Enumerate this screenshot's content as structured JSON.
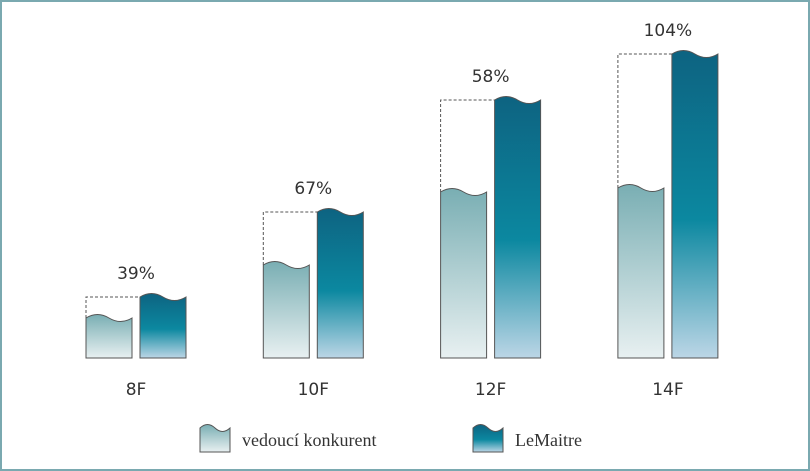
{
  "chart_data": {
    "type": "bar",
    "categories": [
      "8F",
      "10F",
      "12F",
      "14F"
    ],
    "series": [
      {
        "name": "vedoucí konkurent",
        "color": "#7fb0b5",
        "values": [
          40,
          93,
          166,
          170
        ]
      },
      {
        "name": "LeMaitre",
        "color": "#0e6a86",
        "values": [
          61,
          146,
          258,
          304
        ]
      }
    ],
    "increase_labels": [
      "39%",
      "67%",
      "58%",
      "104%"
    ]
  }
}
